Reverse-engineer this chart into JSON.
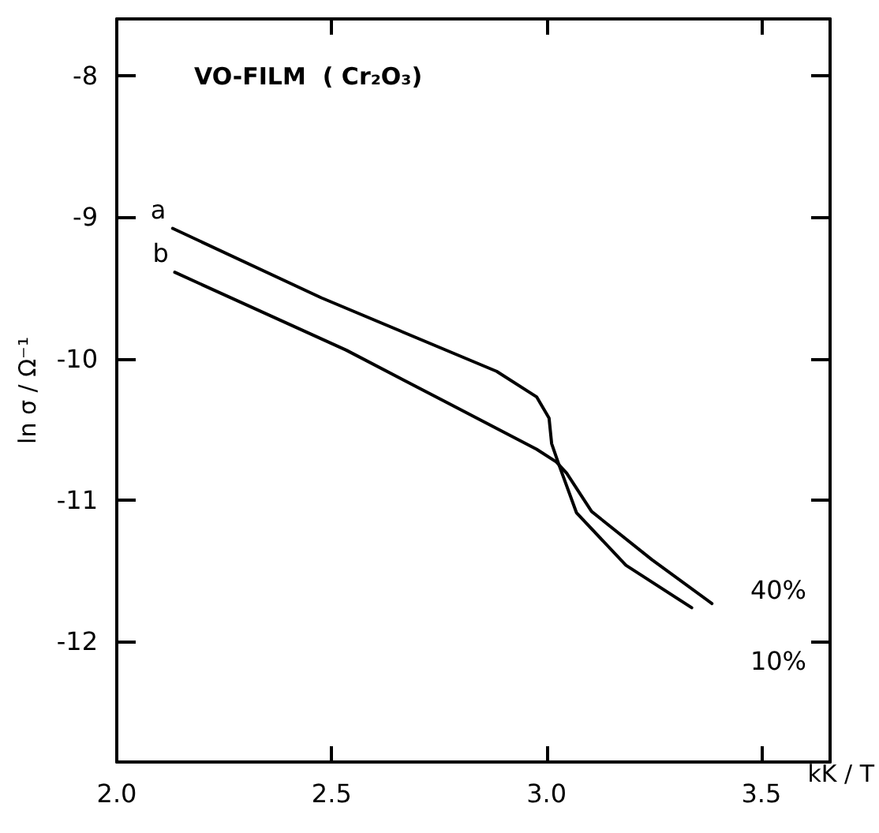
{
  "chart_data": {
    "type": "line",
    "title": "VO-FILM  ( Cr₂O₃)",
    "xlabel": "kK / T",
    "ylabel": "ln σ / Ω⁻¹",
    "xlim": [
      2.0,
      3.66
    ],
    "xticks": [
      {
        "value": 2.0,
        "label": "2.0"
      },
      2.5,
      {
        "value": 3.0,
        "label": "3.0"
      },
      3.5
    ],
    "ylim": [
      -12.85,
      -7.6
    ],
    "yticks": [
      -8,
      -9,
      -10,
      -11,
      -12
    ],
    "series": [
      {
        "name": "a",
        "color": "#000000",
        "x": [
          2.13,
          2.476,
          2.884,
          2.977,
          3.006,
          3.012,
          3.029,
          3.07,
          3.185,
          3.338
        ],
        "values": [
          -9.08,
          -9.57,
          -10.09,
          -10.27,
          -10.42,
          -10.6,
          -10.75,
          -11.09,
          -11.46,
          -11.76
        ]
      },
      {
        "name": "b",
        "color": "#000000",
        "x": [
          2.135,
          2.534,
          2.977,
          3.023,
          3.047,
          3.105,
          3.245,
          3.385
        ],
        "values": [
          -9.39,
          -9.94,
          -10.64,
          -10.73,
          -10.81,
          -11.08,
          -11.42,
          -11.73
        ]
      }
    ],
    "annotations": [
      "40%",
      "10%"
    ],
    "grid": false,
    "legend": false,
    "marker": "none",
    "line_style": "solid"
  }
}
